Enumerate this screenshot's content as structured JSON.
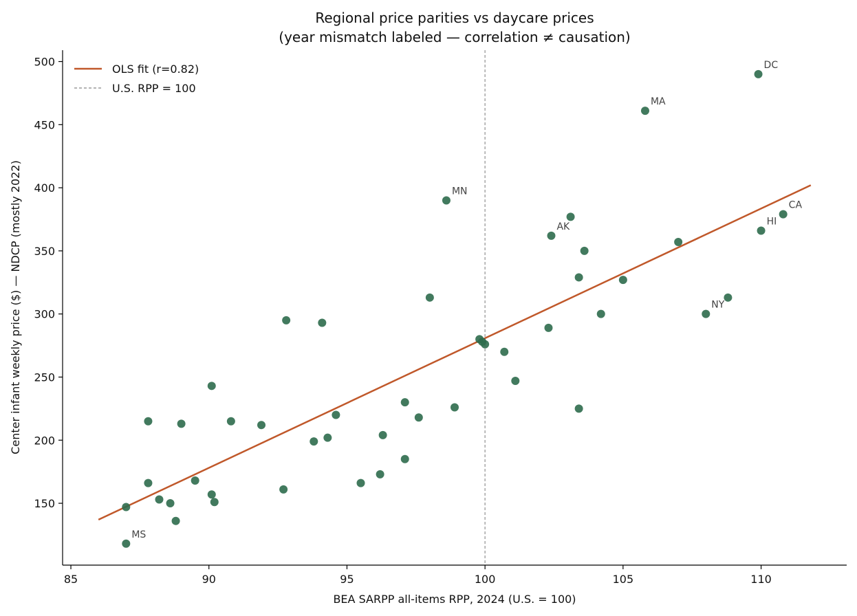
{
  "chart_data": {
    "type": "scatter",
    "title": "Regional price parities vs daycare prices",
    "subtitle": "(year mismatch labeled — correlation ≠ causation)",
    "xlabel": "BEA SARPP all-items RPP, 2024 (U.S. = 100)",
    "ylabel": "Center infant weekly price ($) — NDCP (mostly 2022)",
    "xlim": [
      84.7,
      113.1
    ],
    "ylim": [
      101,
      509
    ],
    "xticks": [
      85,
      90,
      95,
      100,
      105,
      110
    ],
    "yticks": [
      150,
      200,
      250,
      300,
      350,
      400,
      450,
      500
    ],
    "grid": false,
    "legend_position": "top-left",
    "legend": [
      {
        "label": "OLS fit (r=0.82)",
        "style": "solid",
        "color": "#c0582a"
      },
      {
        "label": "U.S. RPP = 100",
        "style": "dashed",
        "color": "#999999"
      }
    ],
    "colors": {
      "points": "#2e6b4c",
      "fit": "#c0582a",
      "reference": "#999999"
    },
    "fit_line": {
      "x": [
        86.0,
        111.8
      ],
      "y": [
        137,
        402
      ]
    },
    "reference_x": 100,
    "points": [
      {
        "x": 87.0,
        "y": 118,
        "label": "MS"
      },
      {
        "x": 87.0,
        "y": 147
      },
      {
        "x": 87.8,
        "y": 166
      },
      {
        "x": 87.8,
        "y": 215
      },
      {
        "x": 88.2,
        "y": 153
      },
      {
        "x": 88.6,
        "y": 150
      },
      {
        "x": 88.8,
        "y": 136
      },
      {
        "x": 89.0,
        "y": 213
      },
      {
        "x": 89.5,
        "y": 168
      },
      {
        "x": 90.1,
        "y": 157
      },
      {
        "x": 90.1,
        "y": 243
      },
      {
        "x": 90.2,
        "y": 151
      },
      {
        "x": 90.8,
        "y": 215
      },
      {
        "x": 91.9,
        "y": 212
      },
      {
        "x": 92.7,
        "y": 161
      },
      {
        "x": 92.8,
        "y": 295
      },
      {
        "x": 93.8,
        "y": 199
      },
      {
        "x": 94.1,
        "y": 293
      },
      {
        "x": 94.3,
        "y": 202
      },
      {
        "x": 94.6,
        "y": 220
      },
      {
        "x": 95.5,
        "y": 166
      },
      {
        "x": 96.2,
        "y": 173
      },
      {
        "x": 96.3,
        "y": 204
      },
      {
        "x": 97.1,
        "y": 185
      },
      {
        "x": 97.1,
        "y": 230
      },
      {
        "x": 97.6,
        "y": 218
      },
      {
        "x": 98.0,
        "y": 313
      },
      {
        "x": 98.6,
        "y": 390,
        "label": "MN"
      },
      {
        "x": 98.9,
        "y": 226
      },
      {
        "x": 99.8,
        "y": 280
      },
      {
        "x": 99.9,
        "y": 278
      },
      {
        "x": 100.0,
        "y": 276
      },
      {
        "x": 100.7,
        "y": 270
      },
      {
        "x": 101.1,
        "y": 247
      },
      {
        "x": 102.3,
        "y": 289
      },
      {
        "x": 102.4,
        "y": 362,
        "label": "AK"
      },
      {
        "x": 103.1,
        "y": 377
      },
      {
        "x": 103.4,
        "y": 329
      },
      {
        "x": 103.4,
        "y": 225
      },
      {
        "x": 103.6,
        "y": 350
      },
      {
        "x": 104.2,
        "y": 300
      },
      {
        "x": 105.0,
        "y": 327
      },
      {
        "x": 105.8,
        "y": 461,
        "label": "MA"
      },
      {
        "x": 107.0,
        "y": 357
      },
      {
        "x": 108.0,
        "y": 300,
        "label": "NY"
      },
      {
        "x": 108.8,
        "y": 313
      },
      {
        "x": 109.9,
        "y": 490,
        "label": "DC"
      },
      {
        "x": 110.0,
        "y": 366,
        "label": "HI"
      },
      {
        "x": 110.8,
        "y": 379,
        "label": "CA"
      }
    ]
  }
}
